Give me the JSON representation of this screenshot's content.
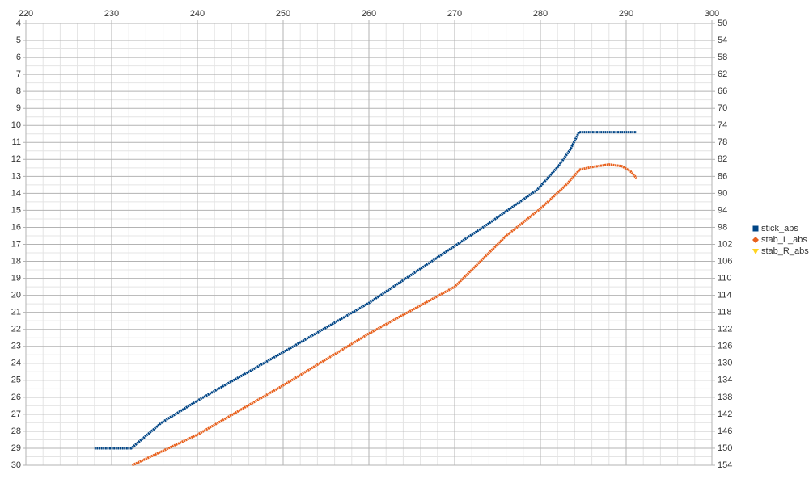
{
  "chart_data": {
    "type": "line",
    "xlim": [
      220,
      300
    ],
    "xticks": [
      220,
      230,
      240,
      250,
      260,
      270,
      280,
      290,
      300
    ],
    "ylim": [
      4,
      30
    ],
    "yticks": [
      4,
      5,
      6,
      7,
      8,
      9,
      10,
      11,
      12,
      13,
      14,
      15,
      16,
      17,
      18,
      19,
      20,
      21,
      22,
      23,
      24,
      25,
      26,
      27,
      28,
      29,
      30
    ],
    "y2lim": [
      50,
      154
    ],
    "y2ticks": [
      50,
      54,
      58,
      62,
      66,
      70,
      74,
      78,
      82,
      86,
      90,
      94,
      98,
      102,
      106,
      110,
      114,
      118,
      122,
      126,
      130,
      134,
      138,
      142,
      146,
      150,
      154
    ],
    "y_inverted": true,
    "x_axis_position": "top",
    "grid": true,
    "minor_grid": true,
    "legend": "right",
    "series": [
      {
        "name": "stick_abs",
        "color": "#004586",
        "marker": "square",
        "x": [
          228,
          232.3,
          235.8,
          240,
          250,
          260,
          270,
          273.6,
          279.6,
          282.1,
          283.5,
          284.5,
          291.2
        ],
        "values": [
          29,
          29,
          27.5,
          26.2,
          23.35,
          20.45,
          17.1,
          15.9,
          13.8,
          12.4,
          11.4,
          10.4,
          10.4
        ]
      },
      {
        "name": "stab_L_abs",
        "color": "#e8601c",
        "marker": "diamond",
        "axis": "y2",
        "x": [
          232.4,
          240,
          250,
          260,
          270,
          276,
          280,
          283,
          284.6,
          286,
          288,
          289.5,
          290.5,
          291.2
        ],
        "values": [
          154,
          146.8,
          135.2,
          123,
          112,
          100,
          93.6,
          88,
          84.4,
          83.8,
          83.2,
          83.6,
          84.8,
          86.4
        ]
      },
      {
        "name": "stab_R_abs",
        "color": "#ffd320",
        "marker": "triangle-down",
        "axis": "y2",
        "x": [],
        "values": []
      }
    ]
  }
}
